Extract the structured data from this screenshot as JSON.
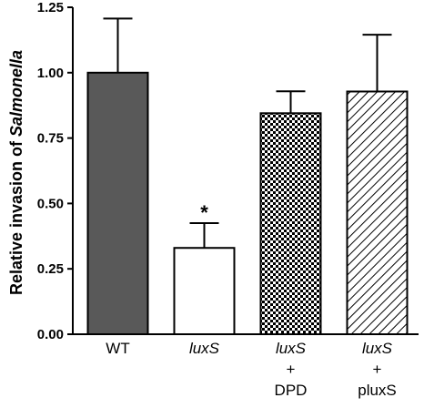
{
  "chart_data": {
    "type": "bar",
    "ylabel": "Relative invasion of Salmonella",
    "ylabel_parts": [
      "Relative invasion of ",
      "Salmonella"
    ],
    "ylim": [
      0,
      1.25
    ],
    "yticks": [
      "0.00",
      "0.25",
      "0.50",
      "0.75",
      "1.00",
      "1.25"
    ],
    "grid": false,
    "categories": [
      {
        "lines": [
          {
            "text": "WT",
            "italic": false
          }
        ]
      },
      {
        "lines": [
          {
            "text": "luxS",
            "italic": true
          }
        ]
      },
      {
        "lines": [
          {
            "text": "luxS",
            "italic": true
          },
          {
            "text": "+",
            "italic": false
          },
          {
            "text": "DPD",
            "italic": false
          }
        ]
      },
      {
        "lines": [
          {
            "text": "luxS",
            "italic": true
          },
          {
            "text": "+",
            "italic": false
          },
          {
            "text": "pluxS",
            "italic": false
          }
        ]
      }
    ],
    "values": [
      1.0,
      0.33,
      0.845,
      0.928
    ],
    "error_upper": [
      1.207,
      0.425,
      0.929,
      1.145
    ],
    "fills": [
      "solid-gray",
      "white",
      "checker",
      "hatch"
    ],
    "colors": {
      "solid_gray": "#595959",
      "outline": "#000000"
    },
    "annotations": [
      {
        "category_index": 1,
        "text": "*"
      }
    ]
  }
}
